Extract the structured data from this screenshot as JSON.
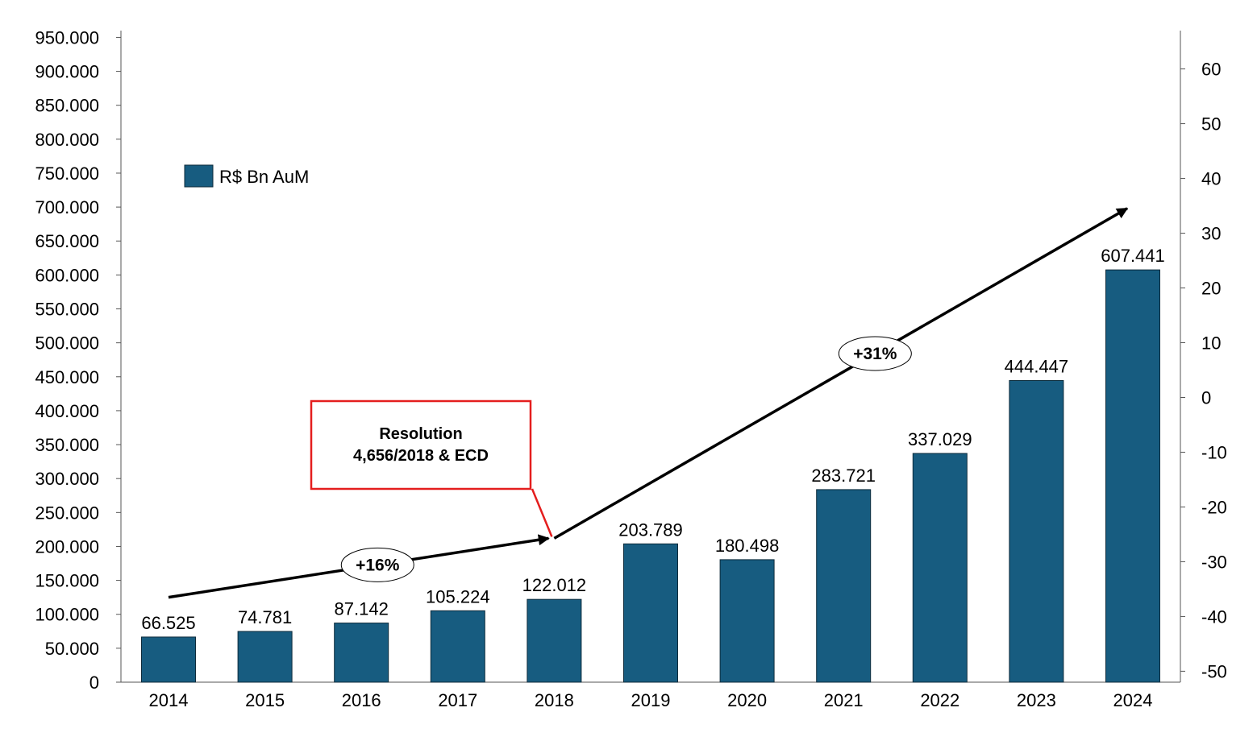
{
  "chart_data": {
    "type": "bar",
    "title": "",
    "xlabel": "",
    "ylabel": "",
    "categories": [
      "2014",
      "2015",
      "2016",
      "2017",
      "2018",
      "2019",
      "2020",
      "2021",
      "2022",
      "2023",
      "2024"
    ],
    "series": [
      {
        "name": "R$ Bn AuM",
        "values": [
          66525,
          74781,
          87142,
          105224,
          122012,
          203789,
          180498,
          283721,
          337029,
          444447,
          607441
        ],
        "labels": [
          "66.525",
          "74.781",
          "87.142",
          "105.224",
          "122.012",
          "203.789",
          "180.498",
          "283.721",
          "337.029",
          "444.447",
          "607.441"
        ],
        "color": "#175c80"
      }
    ],
    "ylim": [
      0,
      960000
    ],
    "y_ticks": [
      0,
      50000,
      100000,
      150000,
      200000,
      250000,
      300000,
      350000,
      400000,
      450000,
      500000,
      550000,
      600000,
      650000,
      700000,
      750000,
      800000,
      850000,
      900000,
      950000
    ],
    "y_tick_labels": [
      "0",
      "50.000",
      "100.000",
      "150.000",
      "200.000",
      "250.000",
      "300.000",
      "350.000",
      "400.000",
      "450.000",
      "500.000",
      "550.000",
      "600.000",
      "650.000",
      "700.000",
      "750.000",
      "800.000",
      "850.000",
      "900.000",
      "950.000"
    ],
    "y2lim": [
      -52,
      67
    ],
    "y2_ticks": [
      -50,
      -40,
      -30,
      -20,
      -10,
      0,
      10,
      20,
      30,
      40,
      50,
      60
    ],
    "y2_tick_labels": [
      "-50",
      "-40",
      "-30",
      "-20",
      "-10",
      "0",
      "10",
      "20",
      "30",
      "40",
      "50",
      "60"
    ],
    "grid": false,
    "legend": {
      "placement": "top-left",
      "entries": [
        "R$ Bn AuM"
      ]
    },
    "annotations": {
      "callout": {
        "lines": [
          "Resolution",
          "4,656/2018 & ECD"
        ],
        "border_color": "#e41e1e",
        "points_to_year": "2018"
      },
      "trend_arrows": [
        {
          "label": "+16%",
          "from": [
            "2014",
            125000
          ],
          "to": [
            "2018",
            212000
          ]
        },
        {
          "label": "+31%",
          "from": [
            "2018",
            212000
          ],
          "to": [
            "2024",
            698000
          ]
        }
      ]
    }
  }
}
